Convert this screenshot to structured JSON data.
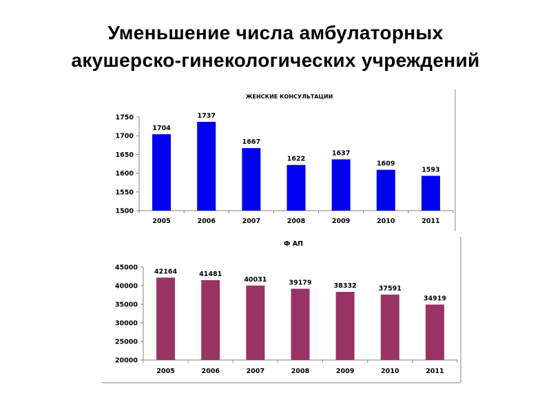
{
  "slide": {
    "title_line1": "Уменьшение числа  амбулаторных",
    "title_line2": "акушерско-гинекологических учреждений"
  },
  "chart_data": [
    {
      "type": "bar",
      "title": "ЖЕНСКИЕ КОНСУЛЬТАЦИИ",
      "xlabel": "",
      "ylabel": "",
      "categories": [
        "2005",
        "2006",
        "2007",
        "2008",
        "2009",
        "2010",
        "2011"
      ],
      "series": [
        {
          "values": [
            1704,
            1737,
            1667,
            1622,
            1637,
            1609,
            1593
          ]
        }
      ],
      "ylim": [
        1500,
        1750
      ],
      "yticks": [
        1500,
        1550,
        1600,
        1650,
        1700,
        1750
      ],
      "ytick_labels": [
        "1500",
        "1550",
        "1600",
        "1650",
        "1700",
        "1750"
      ],
      "data_labels": [
        "1704",
        "1737",
        "1667",
        "1622",
        "1637",
        "1609",
        "1593"
      ],
      "color": "#0000f0",
      "grid": false,
      "legend": "none"
    },
    {
      "type": "bar",
      "title": "Ф АП",
      "xlabel": "",
      "ylabel": "",
      "categories": [
        "2005",
        "2006",
        "2007",
        "2008",
        "2009",
        "2010",
        "2011"
      ],
      "series": [
        {
          "values": [
            42164,
            41481,
            40031,
            39179,
            38332,
            37591,
            34919
          ]
        }
      ],
      "ylim": [
        20000,
        45000
      ],
      "yticks": [
        20000,
        25000,
        30000,
        35000,
        40000,
        45000
      ],
      "ytick_labels": [
        "20000",
        "25000",
        "30000",
        "35000",
        "40000",
        "45000"
      ],
      "data_labels": [
        "42164",
        "41481",
        "40031",
        "39179",
        "38332",
        "37591",
        "34919"
      ],
      "color": "#993366",
      "grid": false,
      "legend": "none"
    }
  ]
}
